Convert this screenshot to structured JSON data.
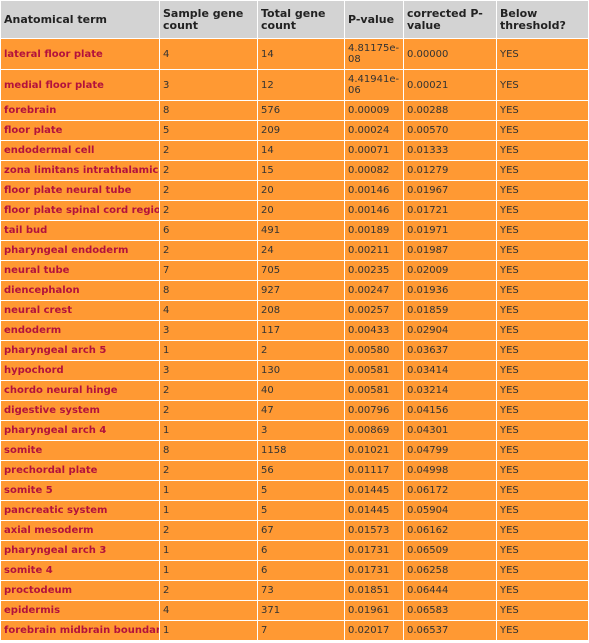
{
  "table": {
    "headers": [
      "Anatomical term",
      "Sample gene count",
      "Total gene count",
      "P-value",
      "corrected P-value",
      "Below threshold?"
    ],
    "rows": [
      {
        "term": "lateral floor plate",
        "sample": "4",
        "total": "14",
        "p": "4.81175e-08",
        "corrected": "0.00000",
        "below": "YES"
      },
      {
        "term": "medial floor plate",
        "sample": "3",
        "total": "12",
        "p": "4.41941e-06",
        "corrected": "0.00021",
        "below": "YES"
      },
      {
        "term": "forebrain",
        "sample": "8",
        "total": "576",
        "p": "0.00009",
        "corrected": "0.00288",
        "below": "YES"
      },
      {
        "term": "floor plate",
        "sample": "5",
        "total": "209",
        "p": "0.00024",
        "corrected": "0.00570",
        "below": "YES"
      },
      {
        "term": "endodermal cell",
        "sample": "2",
        "total": "14",
        "p": "0.00071",
        "corrected": "0.01333",
        "below": "YES"
      },
      {
        "term": "zona limitans intrathalamica",
        "sample": "2",
        "total": "15",
        "p": "0.00082",
        "corrected": "0.01279",
        "below": "YES"
      },
      {
        "term": "floor plate neural tube",
        "sample": "2",
        "total": "20",
        "p": "0.00146",
        "corrected": "0.01967",
        "below": "YES"
      },
      {
        "term": "floor plate spinal cord region",
        "sample": "2",
        "total": "20",
        "p": "0.00146",
        "corrected": "0.01721",
        "below": "YES"
      },
      {
        "term": "tail bud",
        "sample": "6",
        "total": "491",
        "p": "0.00189",
        "corrected": "0.01971",
        "below": "YES"
      },
      {
        "term": "pharyngeal endoderm",
        "sample": "2",
        "total": "24",
        "p": "0.00211",
        "corrected": "0.01987",
        "below": "YES"
      },
      {
        "term": "neural tube",
        "sample": "7",
        "total": "705",
        "p": "0.00235",
        "corrected": "0.02009",
        "below": "YES"
      },
      {
        "term": "diencephalon",
        "sample": "8",
        "total": "927",
        "p": "0.00247",
        "corrected": "0.01936",
        "below": "YES"
      },
      {
        "term": "neural crest",
        "sample": "4",
        "total": "208",
        "p": "0.00257",
        "corrected": "0.01859",
        "below": "YES"
      },
      {
        "term": "endoderm",
        "sample": "3",
        "total": "117",
        "p": "0.00433",
        "corrected": "0.02904",
        "below": "YES"
      },
      {
        "term": "pharyngeal arch 5",
        "sample": "1",
        "total": "2",
        "p": "0.00580",
        "corrected": "0.03637",
        "below": "YES"
      },
      {
        "term": "hypochord",
        "sample": "3",
        "total": "130",
        "p": "0.00581",
        "corrected": "0.03414",
        "below": "YES"
      },
      {
        "term": "chordo neural hinge",
        "sample": "2",
        "total": "40",
        "p": "0.00581",
        "corrected": "0.03214",
        "below": "YES"
      },
      {
        "term": "digestive system",
        "sample": "2",
        "total": "47",
        "p": "0.00796",
        "corrected": "0.04156",
        "below": "YES"
      },
      {
        "term": "pharyngeal arch 4",
        "sample": "1",
        "total": "3",
        "p": "0.00869",
        "corrected": "0.04301",
        "below": "YES"
      },
      {
        "term": "somite",
        "sample": "8",
        "total": "1158",
        "p": "0.01021",
        "corrected": "0.04799",
        "below": "YES"
      },
      {
        "term": "prechordal plate",
        "sample": "2",
        "total": "56",
        "p": "0.01117",
        "corrected": "0.04998",
        "below": "YES"
      },
      {
        "term": "somite 5",
        "sample": "1",
        "total": "5",
        "p": "0.01445",
        "corrected": "0.06172",
        "below": "YES"
      },
      {
        "term": "pancreatic system",
        "sample": "1",
        "total": "5",
        "p": "0.01445",
        "corrected": "0.05904",
        "below": "YES"
      },
      {
        "term": "axial mesoderm",
        "sample": "2",
        "total": "67",
        "p": "0.01573",
        "corrected": "0.06162",
        "below": "YES"
      },
      {
        "term": "pharyngeal arch 3",
        "sample": "1",
        "total": "6",
        "p": "0.01731",
        "corrected": "0.06509",
        "below": "YES"
      },
      {
        "term": "somite 4",
        "sample": "1",
        "total": "6",
        "p": "0.01731",
        "corrected": "0.06258",
        "below": "YES"
      },
      {
        "term": "proctodeum",
        "sample": "2",
        "total": "73",
        "p": "0.01851",
        "corrected": "0.06444",
        "below": "YES"
      },
      {
        "term": "epidermis",
        "sample": "4",
        "total": "371",
        "p": "0.01961",
        "corrected": "0.06583",
        "below": "YES"
      },
      {
        "term": "forebrain midbrain boundary",
        "sample": "1",
        "total": "7",
        "p": "0.02017",
        "corrected": "0.06537",
        "below": "YES"
      }
    ]
  },
  "colors": {
    "header_bg": "#d3d3d3",
    "row_bg": "#ff9933",
    "term_text": "#b3123c"
  }
}
